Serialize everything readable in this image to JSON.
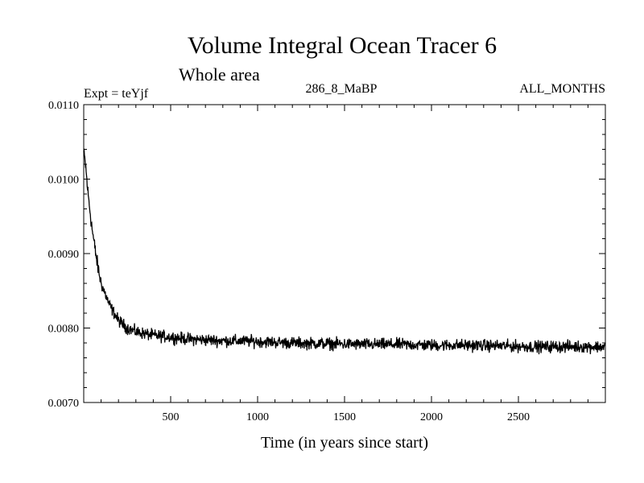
{
  "chart_data": {
    "type": "line",
    "title": "Volume Integral Ocean Tracer 6",
    "subtitle": "Whole area",
    "left_label": "Expt = teYjf",
    "center_label": "286_8_MaBP",
    "right_label": "ALL_MONTHS",
    "xlabel": "Time (in years since start)",
    "ylabel": "",
    "xlim": [
      0,
      3000
    ],
    "ylim": [
      0.007,
      0.011
    ],
    "x_ticks": [
      500,
      1000,
      1500,
      2000,
      2500
    ],
    "x_tick_labels": [
      "500",
      "1000",
      "1500",
      "2000",
      "2500"
    ],
    "y_ticks": [
      0.007,
      0.008,
      0.009,
      0.01,
      0.011
    ],
    "y_tick_labels": [
      "0.0070",
      "0.0080",
      "0.0090",
      "0.0100",
      "0.0110"
    ],
    "grid": false,
    "series": [
      {
        "name": "Volume Integral Ocean Tracer 6",
        "color": "#000000",
        "x": [
          0,
          10,
          25,
          50,
          75,
          100,
          150,
          200,
          250,
          300,
          400,
          500,
          600,
          800,
          1000,
          1200,
          1400,
          1600,
          1800,
          2000,
          2200,
          2400,
          2600,
          2800,
          3000
        ],
        "values": [
          0.01035,
          0.0102,
          0.0098,
          0.0093,
          0.0089,
          0.0086,
          0.0083,
          0.0081,
          0.008,
          0.00795,
          0.0079,
          0.00788,
          0.00785,
          0.00783,
          0.00782,
          0.0078,
          0.00779,
          0.00778,
          0.00778,
          0.00777,
          0.00777,
          0.00776,
          0.00775,
          0.00775,
          0.00775
        ],
        "noise_amplitude": 0.00012
      }
    ]
  }
}
